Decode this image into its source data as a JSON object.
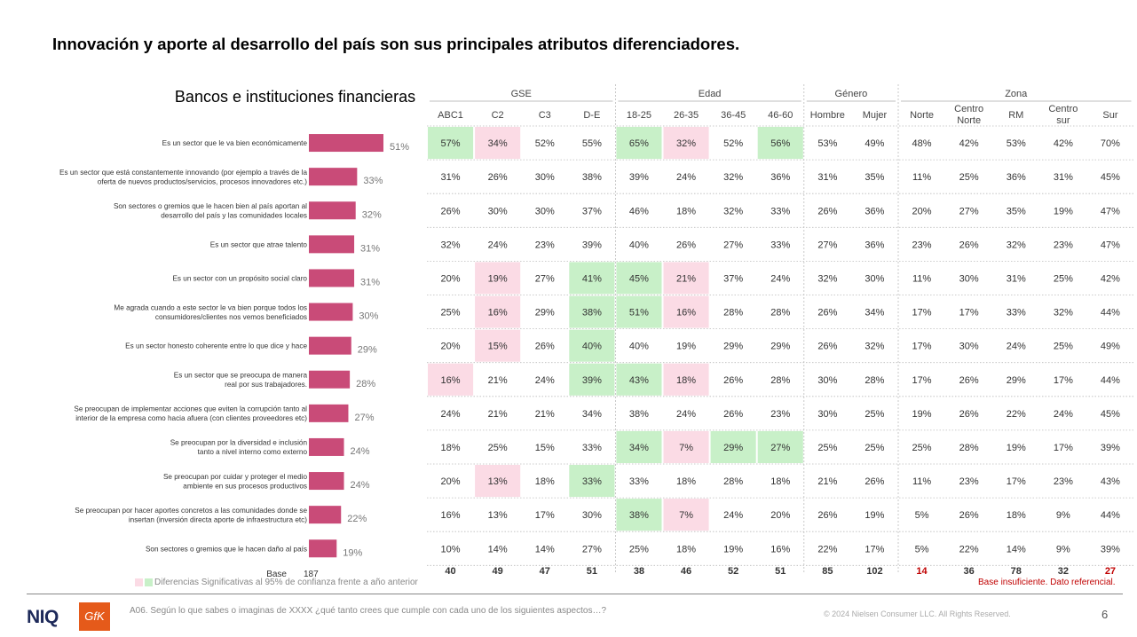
{
  "title": "Innovación y aporte al desarrollo del país son sus principales atributos diferenciadores.",
  "section_title": "Bancos e instituciones financieras",
  "colors": {
    "bar": "#c94b78",
    "sig_up": "#c8f0c8",
    "sig_down": "#fbdbe5",
    "insufficient": "#c00000"
  },
  "chart_data": {
    "type": "bar",
    "orientation": "horizontal",
    "categories": [
      "Es un sector que le va bien económicamente",
      "Es un sector que está constantemente innovando (por ejemplo a través de la oferta de nuevos productos/servicios, procesos innovadores etc.)",
      "Son sectores o gremios que le hacen bien al país aportan al desarrollo del país y las comunidades locales",
      "Es un sector que atrae talento",
      "Es un sector con un propósito social claro",
      "Me agrada cuando a este sector le va bien porque todos los consumidores/clientes nos vemos beneficiados",
      "Es un sector honesto coherente entre lo que dice y hace",
      "Es un sector que se preocupa de manera real por sus trabajadores.",
      "Se preocupan de implementar acciones que eviten la corrupción tanto al interior de la empresa como hacia afuera (con clientes proveedores etc)",
      "Se preocupan por la diversidad e inclusión tanto a nivel interno como externo",
      "Se preocupan por cuidar y proteger el medio ambiente en sus procesos productivos",
      "Se preocupan por hacer aportes concretos a las comunidades donde se insertan (inversión directa aporte de infraestructura etc)",
      "Son sectores o gremios que le hacen daño al país"
    ],
    "values": [
      51,
      33,
      32,
      31,
      31,
      30,
      29,
      28,
      27,
      24,
      24,
      22,
      19
    ],
    "value_labels": [
      "51%",
      "33%",
      "32%",
      "31%",
      "31%",
      "30%",
      "29%",
      "28%",
      "27%",
      "24%",
      "24%",
      "22%",
      "19%"
    ],
    "base_label": "Base",
    "base_total": "187"
  },
  "table": {
    "groups": [
      {
        "label": "GSE",
        "span": 4
      },
      {
        "label": "Edad",
        "span": 4
      },
      {
        "label": "Género",
        "span": 2
      },
      {
        "label": "Zona",
        "span": 5
      }
    ],
    "columns": [
      "ABC1",
      "C2",
      "C3",
      "D-E",
      "18-25",
      "26-35",
      "36-45",
      "46-60",
      "Hombre",
      "Mujer",
      "Norte",
      "Centro Norte",
      "RM",
      "Centro sur",
      "Sur"
    ],
    "rows": [
      [
        "57%",
        "34%",
        "52%",
        "55%",
        "65%",
        "32%",
        "52%",
        "56%",
        "53%",
        "49%",
        "48%",
        "42%",
        "53%",
        "42%",
        "70%"
      ],
      [
        "31%",
        "26%",
        "30%",
        "38%",
        "39%",
        "24%",
        "32%",
        "36%",
        "31%",
        "35%",
        "11%",
        "25%",
        "36%",
        "31%",
        "45%"
      ],
      [
        "26%",
        "30%",
        "30%",
        "37%",
        "46%",
        "18%",
        "32%",
        "33%",
        "26%",
        "36%",
        "20%",
        "27%",
        "35%",
        "19%",
        "47%"
      ],
      [
        "32%",
        "24%",
        "23%",
        "39%",
        "40%",
        "26%",
        "27%",
        "33%",
        "27%",
        "36%",
        "23%",
        "26%",
        "32%",
        "23%",
        "47%"
      ],
      [
        "20%",
        "19%",
        "27%",
        "41%",
        "45%",
        "21%",
        "37%",
        "24%",
        "32%",
        "30%",
        "11%",
        "30%",
        "31%",
        "25%",
        "42%"
      ],
      [
        "25%",
        "16%",
        "29%",
        "38%",
        "51%",
        "16%",
        "28%",
        "28%",
        "26%",
        "34%",
        "17%",
        "17%",
        "33%",
        "32%",
        "44%"
      ],
      [
        "20%",
        "15%",
        "26%",
        "40%",
        "40%",
        "19%",
        "29%",
        "29%",
        "26%",
        "32%",
        "17%",
        "30%",
        "24%",
        "25%",
        "49%"
      ],
      [
        "16%",
        "21%",
        "24%",
        "39%",
        "43%",
        "18%",
        "26%",
        "28%",
        "30%",
        "28%",
        "17%",
        "26%",
        "29%",
        "17%",
        "44%"
      ],
      [
        "24%",
        "21%",
        "21%",
        "34%",
        "38%",
        "24%",
        "26%",
        "23%",
        "30%",
        "25%",
        "19%",
        "26%",
        "22%",
        "24%",
        "45%"
      ],
      [
        "18%",
        "25%",
        "15%",
        "33%",
        "34%",
        "7%",
        "29%",
        "27%",
        "25%",
        "25%",
        "25%",
        "28%",
        "19%",
        "17%",
        "39%"
      ],
      [
        "20%",
        "13%",
        "18%",
        "33%",
        "33%",
        "18%",
        "28%",
        "18%",
        "21%",
        "26%",
        "11%",
        "23%",
        "17%",
        "23%",
        "43%"
      ],
      [
        "16%",
        "13%",
        "17%",
        "30%",
        "38%",
        "7%",
        "24%",
        "20%",
        "26%",
        "19%",
        "5%",
        "26%",
        "18%",
        "9%",
        "44%"
      ],
      [
        "10%",
        "14%",
        "14%",
        "27%",
        "25%",
        "18%",
        "19%",
        "16%",
        "22%",
        "17%",
        "5%",
        "22%",
        "14%",
        "9%",
        "39%"
      ]
    ],
    "significance": [
      [
        "up",
        "down",
        "",
        "",
        "up",
        "down",
        "",
        "up",
        "",
        "",
        "",
        "",
        "",
        "",
        ""
      ],
      [
        "",
        "",
        "",
        "",
        "",
        "",
        "",
        "",
        "",
        "",
        "",
        "",
        "",
        "",
        ""
      ],
      [
        "",
        "",
        "",
        "",
        "",
        "",
        "",
        "",
        "",
        "",
        "",
        "",
        "",
        "",
        ""
      ],
      [
        "",
        "",
        "",
        "",
        "",
        "",
        "",
        "",
        "",
        "",
        "",
        "",
        "",
        "",
        ""
      ],
      [
        "",
        "down",
        "",
        "up",
        "up",
        "down",
        "",
        "",
        "",
        "",
        "",
        "",
        "",
        "",
        ""
      ],
      [
        "",
        "down",
        "",
        "up",
        "up",
        "down",
        "",
        "",
        "",
        "",
        "",
        "",
        "",
        "",
        ""
      ],
      [
        "",
        "down",
        "",
        "up",
        "",
        "",
        "",
        "",
        "",
        "",
        "",
        "",
        "",
        "",
        ""
      ],
      [
        "down",
        "",
        "",
        "up",
        "up",
        "down",
        "",
        "",
        "",
        "",
        "",
        "",
        "",
        "",
        ""
      ],
      [
        "",
        "",
        "",
        "",
        "",
        "",
        "",
        "",
        "",
        "",
        "",
        "",
        "",
        "",
        ""
      ],
      [
        "",
        "",
        "",
        "",
        "up",
        "down",
        "up",
        "up",
        "",
        "",
        "",
        "",
        "",
        "",
        ""
      ],
      [
        "",
        "down",
        "",
        "up",
        "",
        "",
        "",
        "",
        "",
        "",
        "",
        "",
        "",
        "",
        ""
      ],
      [
        "",
        "",
        "",
        "",
        "up",
        "down",
        "",
        "",
        "",
        "",
        "",
        "",
        "",
        "",
        ""
      ],
      [
        "",
        "",
        "",
        "",
        "",
        "",
        "",
        "",
        "",
        "",
        "",
        "",
        "",
        "",
        ""
      ]
    ],
    "bases": [
      "40",
      "49",
      "47",
      "51",
      "38",
      "46",
      "52",
      "51",
      "85",
      "102",
      "14",
      "36",
      "78",
      "32",
      "27"
    ],
    "base_insufficient": [
      false,
      false,
      false,
      false,
      false,
      false,
      false,
      false,
      false,
      false,
      true,
      false,
      false,
      false,
      true
    ]
  },
  "legend_text": "Diferencias Significativas al 95% de confianza frente a año anterior",
  "insufficient_note": "Base insuficiente. Dato referencial.",
  "footnote": "A06. Según lo que sabes o imaginas de XXXX ¿qué tanto crees que cumple con cada uno de los siguientes aspectos…?",
  "copyright": "© 2024 Nielsen Consumer LLC. All Rights Reserved.",
  "page_number": "6",
  "logos": {
    "niq": "NIQ",
    "gfk": "GfK"
  }
}
